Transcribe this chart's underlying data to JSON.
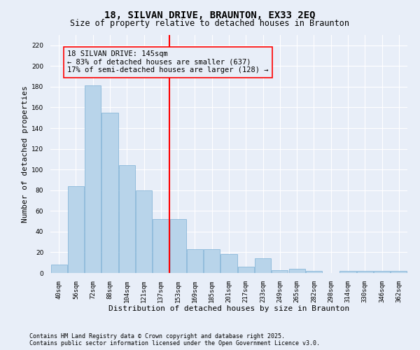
{
  "title": "18, SILVAN DRIVE, BRAUNTON, EX33 2EQ",
  "subtitle": "Size of property relative to detached houses in Braunton",
  "xlabel": "Distribution of detached houses by size in Braunton",
  "ylabel": "Number of detached properties",
  "categories": [
    "40sqm",
    "56sqm",
    "72sqm",
    "88sqm",
    "104sqm",
    "121sqm",
    "137sqm",
    "153sqm",
    "169sqm",
    "185sqm",
    "201sqm",
    "217sqm",
    "233sqm",
    "249sqm",
    "265sqm",
    "282sqm",
    "298sqm",
    "314sqm",
    "330sqm",
    "346sqm",
    "362sqm"
  ],
  "values": [
    8,
    84,
    181,
    155,
    104,
    80,
    52,
    52,
    23,
    23,
    18,
    6,
    14,
    3,
    4,
    2,
    0,
    2,
    2,
    2,
    2
  ],
  "bar_color": "#b8d4ea",
  "bar_edge_color": "#7aafd4",
  "bar_width": 0.95,
  "property_label": "18 SILVAN DRIVE: 145sqm",
  "pct_smaller": 83,
  "n_smaller": 637,
  "pct_larger": 17,
  "n_larger": 128,
  "vline_color": "red",
  "vline_x_index": 7.0,
  "annotation_box_color": "red",
  "ylim": [
    0,
    230
  ],
  "yticks": [
    0,
    20,
    40,
    60,
    80,
    100,
    120,
    140,
    160,
    180,
    200,
    220
  ],
  "background_color": "#e8eef8",
  "grid_color": "#ffffff",
  "footer_line1": "Contains HM Land Registry data © Crown copyright and database right 2025.",
  "footer_line2": "Contains public sector information licensed under the Open Government Licence v3.0.",
  "title_fontsize": 10,
  "subtitle_fontsize": 8.5,
  "xlabel_fontsize": 8,
  "ylabel_fontsize": 8,
  "tick_fontsize": 6.5,
  "annotation_fontsize": 7.5,
  "footer_fontsize": 6
}
